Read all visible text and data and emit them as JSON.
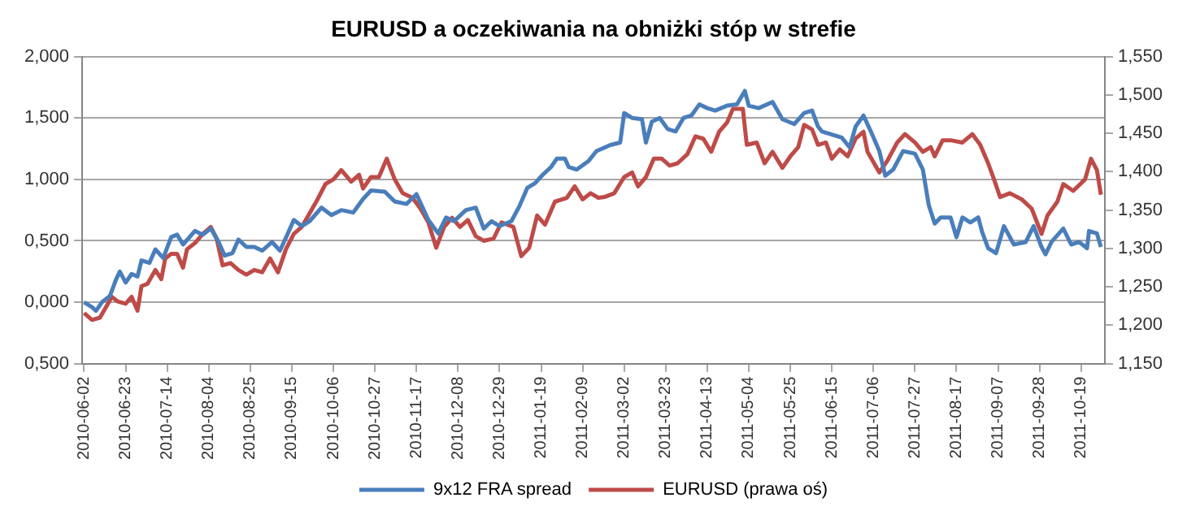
{
  "chart_data": {
    "type": "line",
    "title": "EURUSD a oczekiwania na obniżki stóp w strefie",
    "xlim": [
      "2010-06-01",
      "2011-10-31"
    ],
    "xticks": [
      "2010-06-02",
      "2010-06-23",
      "2010-07-14",
      "2010-08-04",
      "2010-08-25",
      "2010-09-15",
      "2010-10-06",
      "2010-10-27",
      "2010-11-17",
      "2010-12-08",
      "2010-12-29",
      "2011-01-19",
      "2011-02-09",
      "2011-03-02",
      "2011-03-23",
      "2011-04-13",
      "2011-05-04",
      "2011-05-25",
      "2011-06-15",
      "2011-07-06",
      "2011-07-27",
      "2011-08-17",
      "2011-09-07",
      "2011-09-28",
      "2011-10-19"
    ],
    "ylim": [
      -0.5,
      2.0
    ],
    "yticks": [
      {
        "value": -0.5,
        "label": "0,500"
      },
      {
        "value": 0,
        "label": "0,000"
      },
      {
        "value": 0.5,
        "label": "0,500"
      },
      {
        "value": 1.0,
        "label": "1,000"
      },
      {
        "value": 1.5,
        "label": "1,500"
      },
      {
        "value": 2.0,
        "label": "2,000"
      }
    ],
    "y2lim": [
      1.15,
      1.55
    ],
    "y2ticks": [
      {
        "value": 1.15,
        "label": "1,150"
      },
      {
        "value": 1.2,
        "label": "1,200"
      },
      {
        "value": 1.25,
        "label": "1,250"
      },
      {
        "value": 1.3,
        "label": "1,300"
      },
      {
        "value": 1.35,
        "label": "1,350"
      },
      {
        "value": 1.4,
        "label": "1,400"
      },
      {
        "value": 1.45,
        "label": "1,450"
      },
      {
        "value": 1.5,
        "label": "1,500"
      },
      {
        "value": 1.55,
        "label": "1,550"
      }
    ],
    "grid": "y",
    "legend": "bottom",
    "marker": "none",
    "line_style": "solid",
    "series": [
      {
        "name": "9x12 FRA spread",
        "color": "#4a7ebb",
        "x": [
          "2010-06-02",
          "2010-06-06",
          "2010-06-08",
          "2010-06-11",
          "2010-06-15",
          "2010-06-18",
          "2010-06-20",
          "2010-06-23",
          "2010-06-26",
          "2010-06-29",
          "2010-07-01",
          "2010-07-05",
          "2010-07-08",
          "2010-07-12",
          "2010-07-16",
          "2010-07-19",
          "2010-07-22",
          "2010-07-28",
          "2010-08-01",
          "2010-08-05",
          "2010-08-09",
          "2010-08-12",
          "2010-08-16",
          "2010-08-19",
          "2010-08-23",
          "2010-08-27",
          "2010-08-31",
          "2010-09-05",
          "2010-09-09",
          "2010-09-13",
          "2010-09-16",
          "2010-09-20",
          "2010-09-24",
          "2010-09-30",
          "2010-10-05",
          "2010-10-10",
          "2010-10-16",
          "2010-10-21",
          "2010-10-25",
          "2010-11-01",
          "2010-11-06",
          "2010-11-12",
          "2010-11-17",
          "2010-11-23",
          "2010-11-28",
          "2010-12-02",
          "2010-12-06",
          "2010-12-12",
          "2010-12-17",
          "2010-12-21",
          "2010-12-25",
          "2010-12-29",
          "2011-01-04",
          "2011-01-08",
          "2011-01-12",
          "2011-01-16",
          "2011-01-20",
          "2011-01-24",
          "2011-01-27",
          "2011-01-31",
          "2011-02-02",
          "2011-02-06",
          "2011-02-12",
          "2011-02-16",
          "2011-02-23",
          "2011-02-28",
          "2011-03-02",
          "2011-03-06",
          "2011-03-11",
          "2011-03-13",
          "2011-03-16",
          "2011-03-20",
          "2011-03-24",
          "2011-03-28",
          "2011-04-01",
          "2011-04-05",
          "2011-04-09",
          "2011-04-13",
          "2011-04-17",
          "2011-04-23",
          "2011-04-28",
          "2011-05-02",
          "2011-05-04",
          "2011-05-09",
          "2011-05-16",
          "2011-05-21",
          "2011-05-27",
          "2011-06-01",
          "2011-06-05",
          "2011-06-08",
          "2011-06-10",
          "2011-06-16",
          "2011-06-20",
          "2011-06-24",
          "2011-06-27",
          "2011-07-01",
          "2011-07-05",
          "2011-07-09",
          "2011-07-12",
          "2011-07-16",
          "2011-07-21",
          "2011-07-27",
          "2011-07-31",
          "2011-08-03",
          "2011-08-06",
          "2011-08-09",
          "2011-08-14",
          "2011-08-17",
          "2011-08-20",
          "2011-08-24",
          "2011-08-28",
          "2011-08-30",
          "2011-09-02",
          "2011-09-06",
          "2011-09-10",
          "2011-09-15",
          "2011-09-21",
          "2011-09-25",
          "2011-09-29",
          "2011-10-01",
          "2011-10-04",
          "2011-10-10",
          "2011-10-14",
          "2011-10-18",
          "2011-10-22",
          "2011-10-23",
          "2011-10-27",
          "2011-10-29"
        ],
        "values": [
          0,
          -0.04,
          -0.07,
          0,
          0.05,
          0.18,
          0.25,
          0.16,
          0.23,
          0.21,
          0.34,
          0.32,
          0.43,
          0.36,
          0.53,
          0.55,
          0.47,
          0.58,
          0.55,
          0.6,
          0.49,
          0.38,
          0.4,
          0.51,
          0.45,
          0.45,
          0.42,
          0.49,
          0.42,
          0.56,
          0.67,
          0.62,
          0.66,
          0.77,
          0.71,
          0.75,
          0.73,
          0.84,
          0.91,
          0.9,
          0.82,
          0.8,
          0.88,
          0.67,
          0.56,
          0.69,
          0.66,
          0.75,
          0.77,
          0.6,
          0.66,
          0.62,
          0.66,
          0.78,
          0.93,
          0.97,
          1.04,
          1.1,
          1.17,
          1.17,
          1.1,
          1.08,
          1.15,
          1.23,
          1.28,
          1.3,
          1.54,
          1.5,
          1.49,
          1.3,
          1.47,
          1.5,
          1.41,
          1.39,
          1.5,
          1.52,
          1.61,
          1.58,
          1.56,
          1.6,
          1.61,
          1.72,
          1.6,
          1.58,
          1.63,
          1.49,
          1.45,
          1.54,
          1.56,
          1.43,
          1.39,
          1.36,
          1.34,
          1.26,
          1.43,
          1.52,
          1.38,
          1.23,
          1.03,
          1.08,
          1.23,
          1.21,
          1.08,
          0.79,
          0.64,
          0.69,
          0.69,
          0.53,
          0.69,
          0.65,
          0.69,
          0.57,
          0.44,
          0.4,
          0.62,
          0.47,
          0.49,
          0.62,
          0.45,
          0.39,
          0.49,
          0.6,
          0.47,
          0.49,
          0.44,
          0.58,
          0.56,
          0.45
        ]
      },
      {
        "name": "EURUSD (prawa oś)",
        "color": "#be4b48",
        "axis": "y2",
        "x": [
          "2010-06-02",
          "2010-06-06",
          "2010-06-10",
          "2010-06-14",
          "2010-06-16",
          "2010-06-19",
          "2010-06-23",
          "2010-06-26",
          "2010-06-29",
          "2010-07-01",
          "2010-07-04",
          "2010-07-08",
          "2010-07-11",
          "2010-07-13",
          "2010-07-16",
          "2010-07-19",
          "2010-07-22",
          "2010-07-24",
          "2010-07-28",
          "2010-08-01",
          "2010-08-05",
          "2010-08-08",
          "2010-08-11",
          "2010-08-15",
          "2010-08-19",
          "2010-08-23",
          "2010-08-27",
          "2010-08-31",
          "2010-09-04",
          "2010-09-08",
          "2010-09-12",
          "2010-09-16",
          "2010-09-20",
          "2010-09-24",
          "2010-09-28",
          "2010-10-02",
          "2010-10-06",
          "2010-10-10",
          "2010-10-15",
          "2010-10-19",
          "2010-10-21",
          "2010-10-25",
          "2010-10-29",
          "2010-11-02",
          "2010-11-06",
          "2010-11-10",
          "2010-11-15",
          "2010-11-19",
          "2010-11-23",
          "2010-11-27",
          "2010-12-01",
          "2010-12-05",
          "2010-12-09",
          "2010-12-13",
          "2010-12-17",
          "2010-12-21",
          "2010-12-26",
          "2010-12-30",
          "2011-01-05",
          "2011-01-09",
          "2011-01-13",
          "2011-01-17",
          "2011-01-21",
          "2011-01-26",
          "2011-02-01",
          "2011-02-05",
          "2011-02-09",
          "2011-02-13",
          "2011-02-17",
          "2011-02-20",
          "2011-02-25",
          "2011-03-02",
          "2011-03-06",
          "2011-03-09",
          "2011-03-13",
          "2011-03-17",
          "2011-03-21",
          "2011-03-25",
          "2011-03-29",
          "2011-04-03",
          "2011-04-07",
          "2011-04-11",
          "2011-04-15",
          "2011-04-19",
          "2011-04-23",
          "2011-04-26",
          "2011-05-01",
          "2011-05-03",
          "2011-05-08",
          "2011-05-12",
          "2011-05-16",
          "2011-05-21",
          "2011-05-25",
          "2011-05-29",
          "2011-06-01",
          "2011-06-05",
          "2011-06-08",
          "2011-06-12",
          "2011-06-15",
          "2011-06-19",
          "2011-06-23",
          "2011-06-27",
          "2011-07-01",
          "2011-07-03",
          "2011-07-09",
          "2011-07-13",
          "2011-07-18",
          "2011-07-22",
          "2011-07-27",
          "2011-07-31",
          "2011-08-04",
          "2011-08-06",
          "2011-08-10",
          "2011-08-14",
          "2011-08-20",
          "2011-08-25",
          "2011-08-29",
          "2011-09-02",
          "2011-09-05",
          "2011-09-08",
          "2011-09-13",
          "2011-09-19",
          "2011-09-24",
          "2011-09-29",
          "2011-10-02",
          "2011-10-07",
          "2011-10-10",
          "2011-10-15",
          "2011-10-21",
          "2011-10-24",
          "2011-10-27",
          "2011-10-29"
        ],
        "values": [
          1.216,
          1.207,
          1.21,
          1.228,
          1.237,
          1.231,
          1.228,
          1.237,
          1.219,
          1.251,
          1.254,
          1.272,
          1.26,
          1.287,
          1.293,
          1.293,
          1.275,
          1.299,
          1.307,
          1.319,
          1.328,
          1.313,
          1.278,
          1.281,
          1.272,
          1.266,
          1.272,
          1.269,
          1.287,
          1.269,
          1.299,
          1.319,
          1.328,
          1.346,
          1.364,
          1.384,
          1.39,
          1.402,
          1.387,
          1.396,
          1.378,
          1.393,
          1.393,
          1.417,
          1.39,
          1.372,
          1.366,
          1.352,
          1.334,
          1.301,
          1.328,
          1.34,
          1.328,
          1.337,
          1.316,
          1.31,
          1.313,
          1.334,
          1.328,
          1.29,
          1.301,
          1.343,
          1.331,
          1.361,
          1.366,
          1.381,
          1.364,
          1.372,
          1.366,
          1.367,
          1.372,
          1.393,
          1.399,
          1.381,
          1.393,
          1.417,
          1.417,
          1.408,
          1.411,
          1.423,
          1.446,
          1.443,
          1.426,
          1.452,
          1.464,
          1.482,
          1.482,
          1.435,
          1.438,
          1.411,
          1.426,
          1.405,
          1.42,
          1.432,
          1.461,
          1.455,
          1.435,
          1.438,
          1.417,
          1.429,
          1.42,
          1.443,
          1.452,
          1.426,
          1.399,
          1.414,
          1.438,
          1.449,
          1.438,
          1.426,
          1.432,
          1.42,
          1.441,
          1.441,
          1.438,
          1.449,
          1.435,
          1.411,
          1.39,
          1.367,
          1.372,
          1.364,
          1.352,
          1.319,
          1.343,
          1.361,
          1.384,
          1.375,
          1.39,
          1.417,
          1.402,
          1.37
        ]
      }
    ]
  }
}
